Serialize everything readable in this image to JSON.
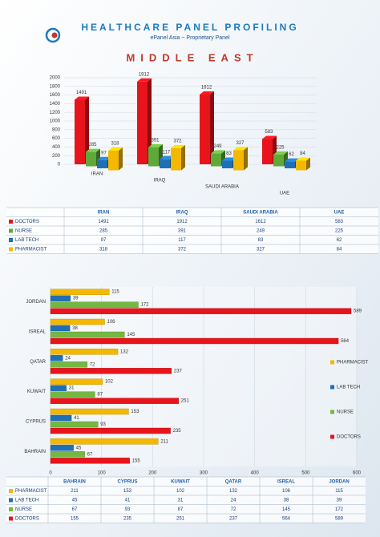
{
  "header": {
    "title": "HEALTHCARE PANEL PROFILING",
    "subtitle": "ePanel Asia ~ Proprietary Panel",
    "region": "MIDDLE EAST"
  },
  "chart_data": [
    {
      "type": "bar3d",
      "categories": [
        "IRAN",
        "IRAQ",
        "SAUDI ARABIA",
        "UAE"
      ],
      "series": [
        {
          "name": "DOCTORS",
          "color": "#e8141b",
          "values": [
            1491,
            1912,
            1612,
            583
          ]
        },
        {
          "name": "NURSE",
          "color": "#5fa83a",
          "values": [
            285,
            391,
            249,
            225
          ]
        },
        {
          "name": "LAB TECH",
          "color": "#1f6fb5",
          "values": [
            97,
            117,
            83,
            62
          ]
        },
        {
          "name": "PHARMACIST",
          "color": "#f5b800",
          "values": [
            318,
            372,
            327,
            84
          ]
        }
      ],
      "ylim": [
        0,
        2000
      ],
      "yticks": [
        0,
        200,
        400,
        600,
        800,
        1000,
        1200,
        1400,
        1600,
        1800,
        2000
      ],
      "grid": true
    },
    {
      "type": "hbar",
      "categories": [
        "BAHRAIN",
        "CYPRUS",
        "KUWAIT",
        "QATAR",
        "ISREAL",
        "JORDAN"
      ],
      "series": [
        {
          "name": "PHARMACIST",
          "color": "#f5b800",
          "values": [
            211,
            153,
            102,
            132,
            106,
            115
          ]
        },
        {
          "name": "LAB TECH",
          "color": "#1f6fb5",
          "values": [
            45,
            41,
            31,
            24,
            38,
            39
          ]
        },
        {
          "name": "NURSE",
          "color": "#74b843",
          "values": [
            67,
            93,
            87,
            72,
            145,
            172
          ]
        },
        {
          "name": "DOCTORS",
          "color": "#e8141b",
          "values": [
            155,
            235,
            251,
            237,
            564,
            589
          ]
        }
      ],
      "xlim": [
        0,
        600
      ],
      "xticks": [
        0,
        100,
        200,
        300,
        400,
        500,
        600
      ],
      "grid": true,
      "legend": "right"
    }
  ]
}
